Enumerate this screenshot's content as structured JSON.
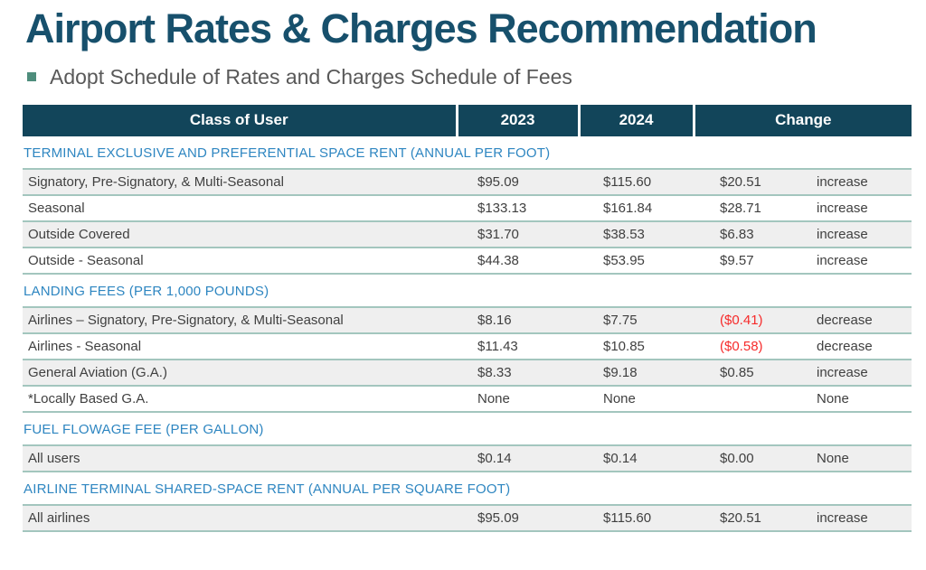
{
  "page": {
    "title": "Airport Rates & Charges Recommendation",
    "bullet": "Adopt Schedule of Rates and Charges Schedule of Fees"
  },
  "colors": {
    "title_teal": "#17506C",
    "header_background": "#12455A",
    "header_text": "#FFFFFF",
    "section_heading_blue": "#2E86C1",
    "row_shade_gray": "#EFEFEF",
    "row_border_teal": "#A3C6BE",
    "body_text": "#404040",
    "negative_red": "#F62B2B",
    "bullet_square_teal": "#4E8D7C",
    "bullet_text_gray": "#595959"
  },
  "table": {
    "headers": [
      "Class of User",
      "2023",
      "2024",
      "Change"
    ],
    "sections": [
      {
        "heading": "TERMINAL EXCLUSIVE AND PREFERENTIAL SPACE RENT (ANNUAL PER FOOT)",
        "rows": [
          {
            "label": "Signatory, Pre-Signatory, & Multi-Seasonal",
            "y2023": "$95.09",
            "y2024": "$115.60",
            "change": "$20.51",
            "direction": "increase",
            "negative": false
          },
          {
            "label": "Seasonal",
            "y2023": "$133.13",
            "y2024": "$161.84",
            "change": "$28.71",
            "direction": "increase",
            "negative": false
          },
          {
            "label": "Outside Covered",
            "y2023": "$31.70",
            "y2024": "$38.53",
            "change": "$6.83",
            "direction": "increase",
            "negative": false
          },
          {
            "label": "Outside - Seasonal",
            "y2023": "$44.38",
            "y2024": "$53.95",
            "change": "$9.57",
            "direction": "increase",
            "negative": false
          }
        ]
      },
      {
        "heading": "LANDING FEES (PER 1,000 POUNDS)",
        "rows": [
          {
            "label": "Airlines – Signatory, Pre-Signatory, & Multi-Seasonal",
            "y2023": "$8.16",
            "y2024": "$7.75",
            "change": "($0.41)",
            "direction": "decrease",
            "negative": true
          },
          {
            "label": "Airlines - Seasonal",
            "y2023": "$11.43",
            "y2024": "$10.85",
            "change": "($0.58)",
            "direction": "decrease",
            "negative": true
          },
          {
            "label": "General Aviation (G.A.)",
            "y2023": "$8.33",
            "y2024": "$9.18",
            "change": "$0.85",
            "direction": "increase",
            "negative": false
          },
          {
            "label": "*Locally Based G.A.",
            "y2023": "None",
            "y2024": "None",
            "change": "",
            "direction": "None",
            "negative": false
          }
        ]
      },
      {
        "heading": "FUEL FLOWAGE FEE (PER GALLON)",
        "rows": [
          {
            "label": "All users",
            "y2023": "$0.14",
            "y2024": "$0.14",
            "change": "$0.00",
            "direction": "None",
            "negative": false
          }
        ]
      },
      {
        "heading": "AIRLINE TERMINAL SHARED-SPACE RENT (ANNUAL PER SQUARE FOOT)",
        "rows": [
          {
            "label": "All airlines",
            "y2023": "$95.09",
            "y2024": "$115.60",
            "change": "$20.51",
            "direction": "increase",
            "negative": false
          }
        ]
      }
    ]
  }
}
